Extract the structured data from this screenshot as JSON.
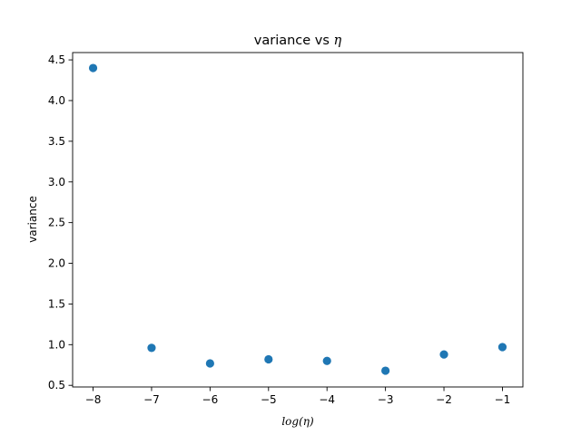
{
  "chart_data": {
    "type": "scatter",
    "title_text": "variance vs ",
    "title_symbol": "η",
    "xlabel": "log(η)",
    "ylabel": "variance",
    "xlim": [
      -8.35,
      -0.65
    ],
    "ylim": [
      0.48,
      4.59
    ],
    "xticks": [
      -8,
      -7,
      -6,
      -5,
      -4,
      -3,
      -2,
      -1
    ],
    "xtick_labels": [
      "−8",
      "−7",
      "−6",
      "−5",
      "−4",
      "−3",
      "−2",
      "−1"
    ],
    "yticks": [
      0.5,
      1.0,
      1.5,
      2.0,
      2.5,
      3.0,
      3.5,
      4.0,
      4.5
    ],
    "ytick_labels": [
      "0.5",
      "1.0",
      "1.5",
      "2.0",
      "2.5",
      "3.0",
      "3.5",
      "4.0",
      "4.5"
    ],
    "color": "#1f77b4",
    "grid": false,
    "series": [
      {
        "x": [
          -8,
          -7,
          -6,
          -5,
          -4,
          -3,
          -2,
          -1
        ],
        "y": [
          4.4,
          0.96,
          0.77,
          0.82,
          0.8,
          0.68,
          0.88,
          0.97
        ]
      }
    ]
  }
}
